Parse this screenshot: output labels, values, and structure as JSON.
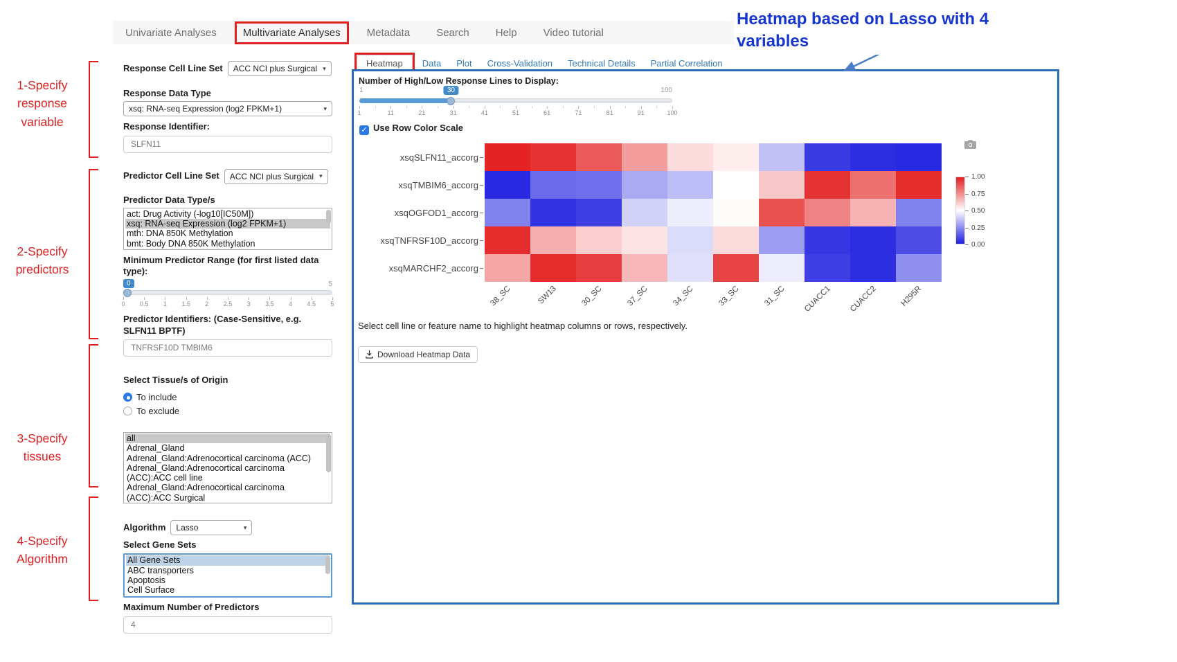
{
  "theme": {
    "accent": "#428bca",
    "link": "#337ab7",
    "results_border": "#2a6db8",
    "navbar_bg": "#f7f7f7"
  },
  "annotations": {
    "color": "#e02020",
    "note_color": "#1636cf",
    "arrow_color": "#4a7cc7",
    "step1": "1-Specify response variable",
    "step2": "2-Specify predictors",
    "step3": "3-Specify tissues",
    "step4": "4-Specify Algorithm",
    "heatmap_note": "Heatmap based on Lasso with 4 variables"
  },
  "nav": {
    "items": [
      {
        "label": "Univariate Analyses",
        "active": false
      },
      {
        "label": "Multivariate Analyses",
        "active": true
      },
      {
        "label": "Metadata",
        "active": false
      },
      {
        "label": "Search",
        "active": false
      },
      {
        "label": "Help",
        "active": false
      },
      {
        "label": "Video tutorial",
        "active": false
      }
    ]
  },
  "form": {
    "response_cell_line_set": {
      "label": "Response Cell Line Set",
      "value": "ACC NCI plus Surgical"
    },
    "response_data_type": {
      "label": "Response Data Type",
      "value": "xsq: RNA-seq Expression (log2 FPKM+1)"
    },
    "response_identifier": {
      "label": "Response Identifier:",
      "value": "SLFN11"
    },
    "predictor_cell_line_set": {
      "label": "Predictor Cell Line Set",
      "value": "ACC NCI plus Surgical"
    },
    "predictor_data_types": {
      "label": "Predictor Data Type/s",
      "options": [
        "act: Drug Activity (-log10[IC50M])",
        "xsq: RNA-seq Expression (log2 FPKM+1)",
        "mth: DNA 850K Methylation",
        "bmt: Body DNA 850K Methylation"
      ],
      "selected_index": 1
    },
    "min_predictor_range": {
      "label": "Minimum Predictor Range (for first listed data type):",
      "value": 0,
      "min": 0,
      "max": 5,
      "max_label": "5",
      "ticks": [
        "0",
        "0.5",
        "1",
        "1.5",
        "2",
        "2.5",
        "3",
        "3.5",
        "4",
        "4.5",
        "5"
      ]
    },
    "predictor_identifiers": {
      "label": "Predictor Identifiers: (Case-Sensitive, e.g. SLFN11 BPTF)",
      "value": "TNFRSF10D TMBIM6"
    },
    "tissue_origin": {
      "label": "Select Tissue/s of Origin",
      "radios": [
        {
          "label": "To include",
          "checked": true
        },
        {
          "label": "To exclude",
          "checked": false
        }
      ],
      "options": [
        "all",
        "Adrenal_Gland",
        "Adrenal_Gland:Adrenocortical carcinoma (ACC)",
        "Adrenal_Gland:Adrenocortical carcinoma (ACC):ACC cell line",
        "Adrenal_Gland:Adrenocortical carcinoma (ACC):ACC Surgical"
      ],
      "selected_index": 0
    },
    "algorithm": {
      "label": "Algorithm",
      "value": "Lasso"
    },
    "gene_sets": {
      "label": "Select Gene Sets",
      "options": [
        "All Gene Sets",
        "ABC transporters",
        "Apoptosis",
        "Cell Surface"
      ],
      "selected_index": 0
    },
    "max_predictors": {
      "label": "Maximum Number of Predictors",
      "value": "4"
    }
  },
  "main": {
    "tabs": [
      {
        "label": "Heatmap",
        "active": true
      },
      {
        "label": "Data",
        "active": false
      },
      {
        "label": "Plot",
        "active": false
      },
      {
        "label": "Cross-Validation",
        "active": false
      },
      {
        "label": "Technical Details",
        "active": false
      },
      {
        "label": "Partial Correlation",
        "active": false
      }
    ],
    "lines_slider": {
      "label": "Number of High/Low Response Lines to Display:",
      "min": 1,
      "max": 100,
      "value": 30,
      "min_label": "1",
      "max_label": "100",
      "ticks": [
        "1",
        "11",
        "21",
        "31",
        "41",
        "51",
        "61",
        "71",
        "81",
        "91",
        "100"
      ]
    },
    "row_color_scale": {
      "label": "Use Row Color Scale",
      "checked": true
    },
    "hint": "Select cell line or feature name to highlight heatmap columns or rows, respectively.",
    "download_button": "Download Heatmap Data"
  },
  "chart_data": {
    "type": "heatmap",
    "rows": [
      "xsqSLFN11_accorg",
      "xsqTMBIM6_accorg",
      "xsqOGFOD1_accorg",
      "xsqTNFRSF10D_accorg",
      "xsqMARCHF2_accorg"
    ],
    "columns": [
      "38_SC",
      "SW13",
      "30_SC",
      "37_SC",
      "34_SC",
      "33_SC",
      "31_SC",
      "CUACC1",
      "CUACC2",
      "H295R"
    ],
    "values": [
      [
        0.99,
        0.96,
        0.87,
        0.72,
        0.58,
        0.54,
        0.36,
        0.06,
        0.03,
        0.02
      ],
      [
        0.02,
        0.17,
        0.18,
        0.31,
        0.35,
        0.5,
        0.62,
        0.96,
        0.82,
        0.97
      ],
      [
        0.22,
        0.04,
        0.07,
        0.4,
        0.46,
        0.51,
        0.89,
        0.78,
        0.67,
        0.22
      ],
      [
        0.97,
        0.68,
        0.61,
        0.56,
        0.42,
        0.58,
        0.28,
        0.05,
        0.03,
        0.1
      ],
      [
        0.7,
        0.97,
        0.93,
        0.66,
        0.43,
        0.92,
        0.46,
        0.07,
        0.03,
        0.25
      ]
    ],
    "colorscale": {
      "low": "#2020e0",
      "mid": "#ffffff",
      "high": "#e32020",
      "domain": [
        0,
        1
      ]
    },
    "colorbar_ticks": [
      "1.00",
      "0.75",
      "0.50",
      "0.25",
      "0.00"
    ],
    "legend_position": "right",
    "grid": false
  }
}
